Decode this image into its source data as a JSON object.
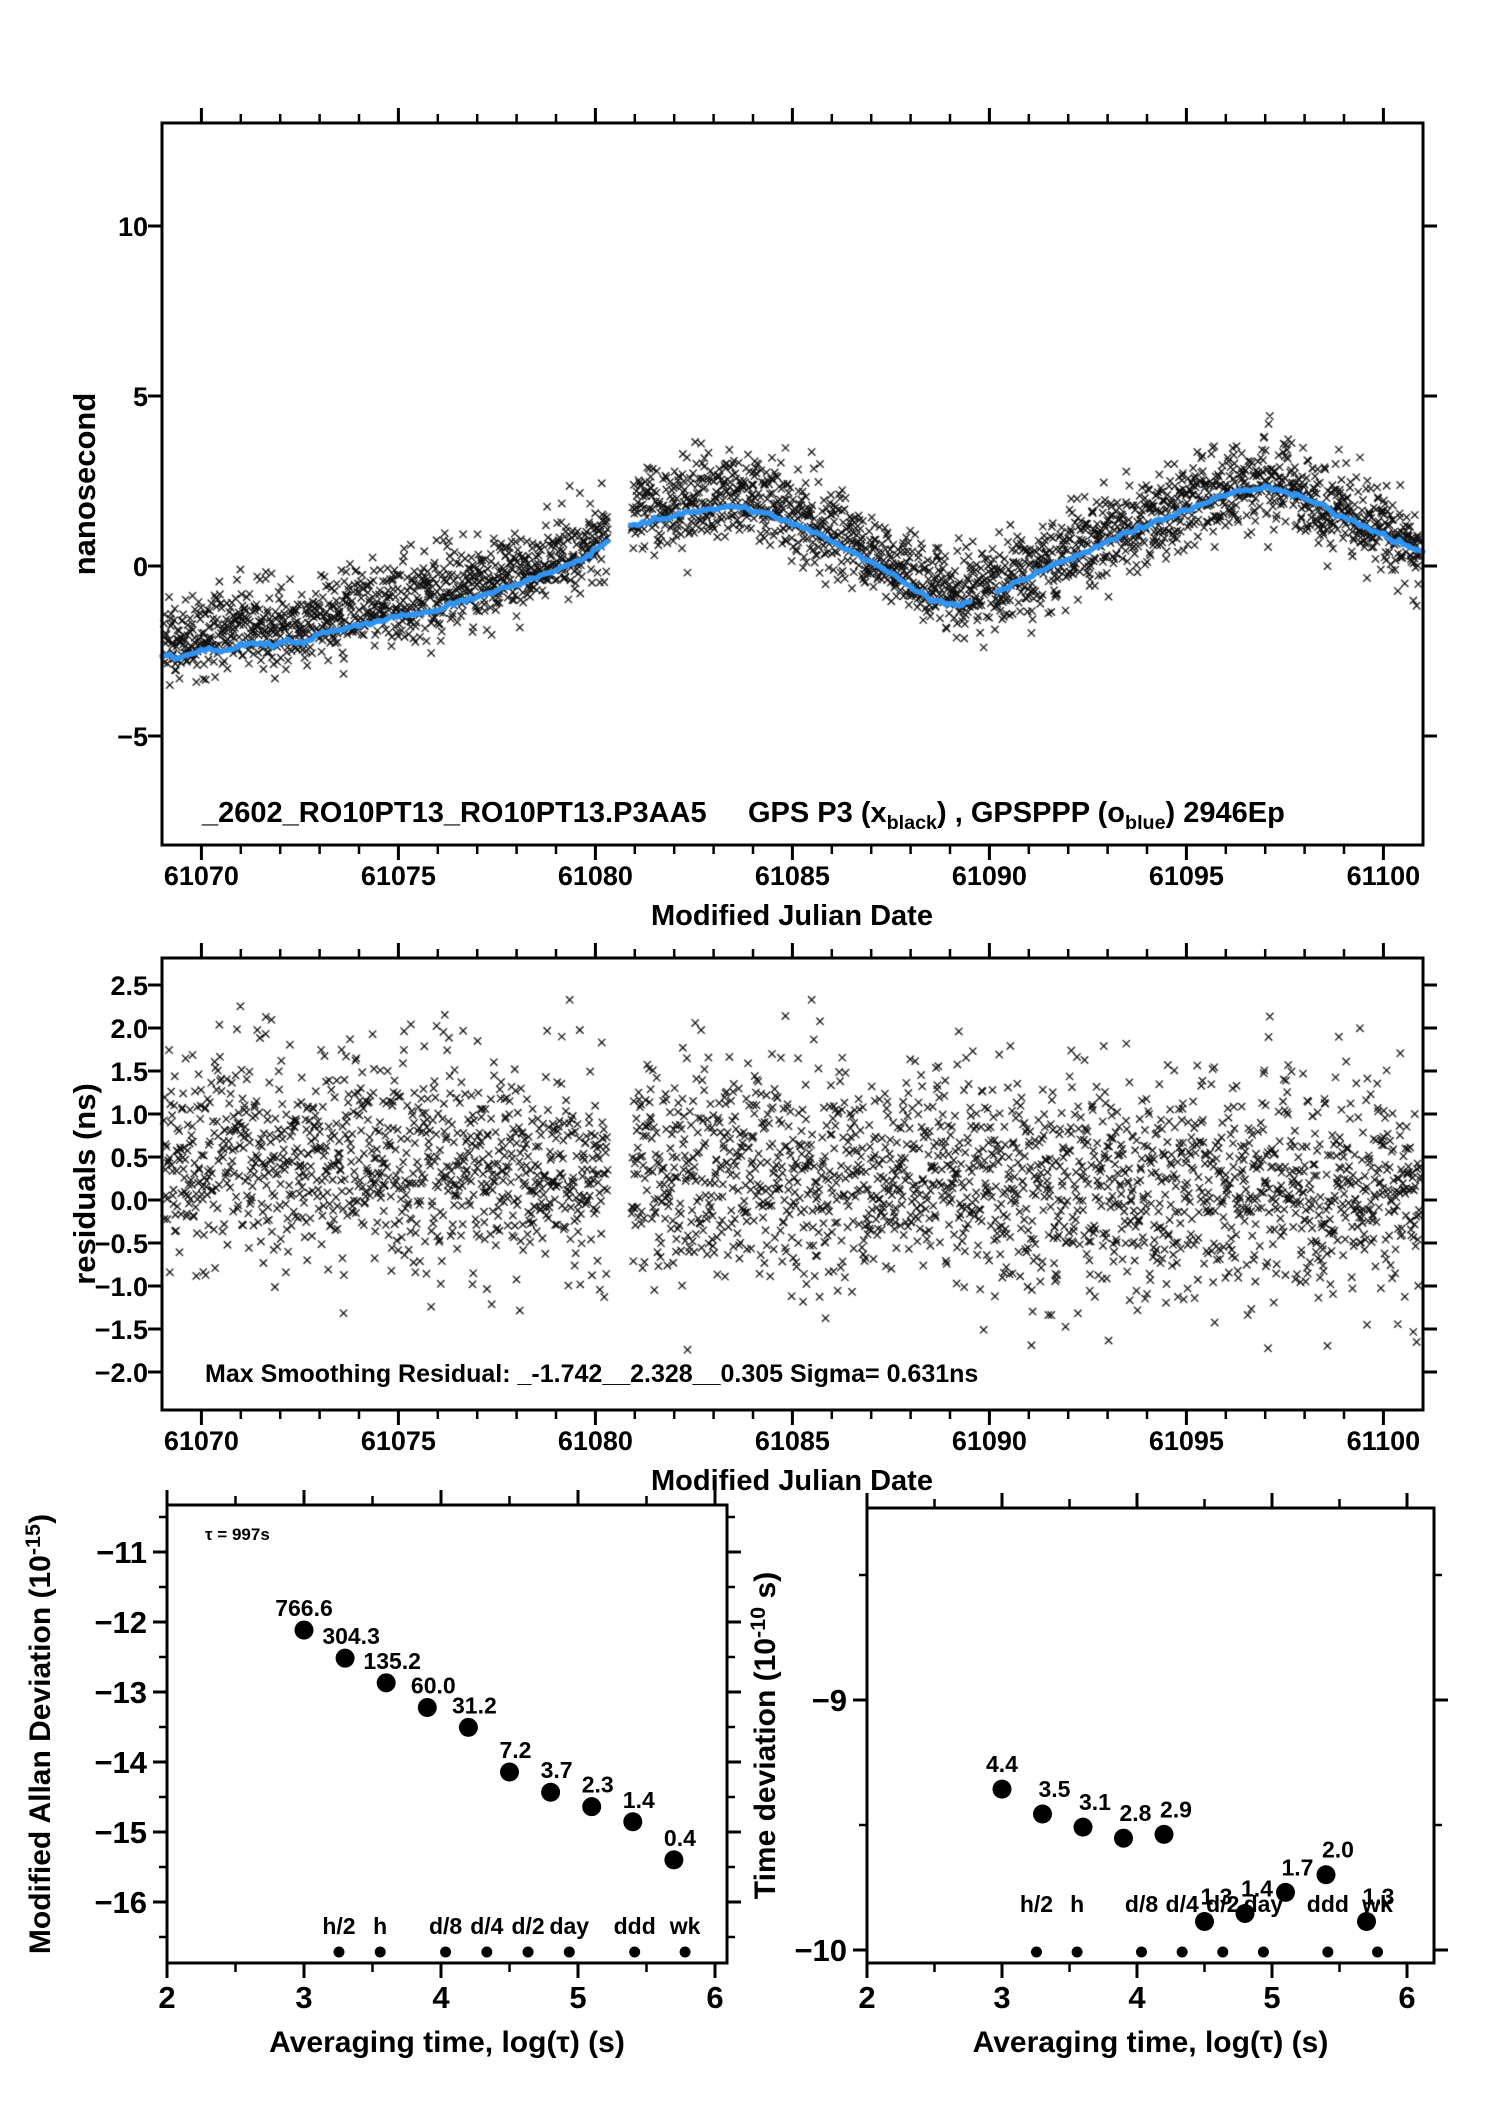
{
  "colors": {
    "black": "#000000",
    "blue": "#2f93f2",
    "red": "#ee0000",
    "background": "#ffffff"
  },
  "chart_data": [
    {
      "id": "gps_comparison",
      "type": "scatter+line",
      "title_left": "_2602_RO10PT13_RO10PT13.P3AA5",
      "title_right_parts": [
        {
          "t": "GPS P3 (x"
        },
        {
          "t": "black",
          "sub": true
        },
        {
          "t": ") ,  GPSPPP (o"
        },
        {
          "t": "blue",
          "sub": true
        },
        {
          "t": ")  2946Ep"
        }
      ],
      "xlabel": "Modified Julian Date",
      "ylabel_parts": [
        {
          "t": "nanosecond"
        }
      ],
      "xlim": [
        61069,
        61101
      ],
      "ylim": [
        -8.2,
        13.1
      ],
      "xticks": [
        61070,
        61075,
        61080,
        61085,
        61090,
        61095,
        61100
      ],
      "xtick_labels": [
        "61070",
        "61075",
        "61080",
        "61085",
        "61090",
        "61095",
        "61100"
      ],
      "xminor_step": 1,
      "yticks": [
        10,
        5,
        0,
        -5
      ],
      "ytick_labels": [
        "10",
        "5",
        "0",
        "−5"
      ],
      "grid": false,
      "epochs": 2946,
      "data_gap": [
        61080.32,
        61080.92
      ],
      "scatter_marker": "x",
      "scatter_color": "#000000",
      "scatter_sigma": 0.62,
      "scatter_mean_offset": [
        0.5,
        0.1
      ],
      "residual_clip": [
        -1.742,
        2.328
      ],
      "line_color": "#2f93f2",
      "trend_segments": [
        [
          [
            61069.0,
            -2.6
          ],
          [
            61069.4,
            -2.72
          ],
          [
            61069.8,
            -2.55
          ],
          [
            61070.2,
            -2.45
          ],
          [
            61070.6,
            -2.52
          ],
          [
            61071.0,
            -2.35
          ],
          [
            61071.4,
            -2.28
          ],
          [
            61071.8,
            -2.32
          ],
          [
            61072.2,
            -2.18
          ],
          [
            61072.6,
            -2.28
          ],
          [
            61073.0,
            -2.02
          ],
          [
            61073.4,
            -1.92
          ],
          [
            61073.8,
            -1.8
          ],
          [
            61074.2,
            -1.72
          ],
          [
            61074.6,
            -1.6
          ],
          [
            61075.0,
            -1.48
          ],
          [
            61075.4,
            -1.4
          ],
          [
            61075.8,
            -1.33
          ],
          [
            61076.2,
            -1.18
          ],
          [
            61076.6,
            -1.05
          ],
          [
            61077.0,
            -0.92
          ],
          [
            61077.4,
            -0.8
          ],
          [
            61077.8,
            -0.62
          ],
          [
            61078.2,
            -0.48
          ],
          [
            61078.6,
            -0.3
          ],
          [
            61079.0,
            -0.12
          ],
          [
            61079.4,
            0.05
          ],
          [
            61079.8,
            0.28
          ],
          [
            61080.1,
            0.55
          ],
          [
            61080.3,
            0.72
          ]
        ],
        [
          [
            61080.9,
            1.22
          ],
          [
            61081.3,
            1.32
          ],
          [
            61081.7,
            1.4
          ],
          [
            61082.1,
            1.5
          ],
          [
            61082.5,
            1.58
          ],
          [
            61082.9,
            1.68
          ],
          [
            61083.3,
            1.76
          ],
          [
            61083.7,
            1.74
          ],
          [
            61084.1,
            1.62
          ],
          [
            61084.5,
            1.48
          ],
          [
            61084.9,
            1.3
          ],
          [
            61085.3,
            1.12
          ],
          [
            61085.7,
            0.92
          ],
          [
            61086.1,
            0.68
          ],
          [
            61086.5,
            0.42
          ],
          [
            61086.9,
            0.18
          ],
          [
            61087.3,
            -0.08
          ],
          [
            61087.7,
            -0.38
          ],
          [
            61088.1,
            -0.68
          ],
          [
            61088.5,
            -0.95
          ],
          [
            61088.9,
            -1.1
          ],
          [
            61089.3,
            -1.15
          ],
          [
            61089.5,
            -1.05
          ]
        ],
        [
          [
            61090.2,
            -0.72
          ],
          [
            61090.6,
            -0.55
          ],
          [
            61091.0,
            -0.32
          ],
          [
            61091.4,
            -0.1
          ],
          [
            61091.8,
            0.1
          ],
          [
            61092.2,
            0.3
          ],
          [
            61092.6,
            0.5
          ],
          [
            61093.0,
            0.72
          ],
          [
            61093.4,
            0.92
          ],
          [
            61093.8,
            1.12
          ],
          [
            61094.2,
            1.3
          ],
          [
            61094.6,
            1.45
          ],
          [
            61095.0,
            1.65
          ],
          [
            61095.4,
            1.85
          ],
          [
            61095.8,
            2.02
          ],
          [
            61096.2,
            2.18
          ],
          [
            61096.6,
            2.26
          ],
          [
            61097.0,
            2.3
          ],
          [
            61097.4,
            2.22
          ],
          [
            61097.8,
            2.08
          ],
          [
            61098.2,
            1.9
          ],
          [
            61098.6,
            1.68
          ],
          [
            61099.0,
            1.45
          ],
          [
            61099.4,
            1.2
          ],
          [
            61099.8,
            0.98
          ],
          [
            61100.2,
            0.8
          ],
          [
            61100.6,
            0.58
          ],
          [
            61101.0,
            0.42
          ]
        ]
      ]
    },
    {
      "id": "residuals",
      "type": "scatter",
      "annotation": "Max Smoothing Residual: _-1.742__2.328__0.305  Sigma= 0.631ns",
      "max_residual_min": -1.742,
      "max_residual_max": 2.328,
      "residual_mean": 0.305,
      "sigma_ns": 0.631,
      "xlabel": "Modified Julian Date",
      "ylabel_parts": [
        {
          "t": "residuals (ns)"
        }
      ],
      "xlim": [
        61069,
        61101
      ],
      "ylim": [
        -2.44,
        2.81
      ],
      "xticks": [
        61070,
        61075,
        61080,
        61085,
        61090,
        61095,
        61100
      ],
      "xtick_labels": [
        "61070",
        "61075",
        "61080",
        "61085",
        "61090",
        "61095",
        "61100"
      ],
      "xminor_step": 1,
      "yticks": [
        2.5,
        2.0,
        1.5,
        1.0,
        0.5,
        0.0,
        -0.5,
        -1.0,
        -1.5,
        -2.0
      ],
      "ytick_labels": [
        "2.5",
        "2.0",
        "1.5",
        "1.0",
        "0.5",
        "0.0",
        "−0.5",
        "−1.0",
        "−1.5",
        "−2.0"
      ],
      "grid": false
    },
    {
      "id": "mdev",
      "type": "scatter",
      "annotation": "τ = 997s",
      "xlabel": "Averaging time, log(τ) (s)",
      "ylabel_parts": [
        {
          "t": "Modified Allan Deviation (10"
        },
        {
          "t": "-15",
          "sup": true
        },
        {
          "t": ")"
        }
      ],
      "xlim": [
        2.0,
        6.09
      ],
      "ylim": [
        -16.87,
        -10.33
      ],
      "xticks": [
        2,
        3,
        4,
        5,
        6
      ],
      "xtick_labels": [
        "2",
        "3",
        "4",
        "5",
        "6"
      ],
      "yticks": [
        -11,
        -12,
        -13,
        -14,
        -15,
        -16
      ],
      "ytick_labels": [
        "−11",
        "−12",
        "−13",
        "−14",
        "−15",
        "−16"
      ],
      "unit_scale": "1e-15",
      "log_tau": [
        3.0,
        3.3,
        3.6,
        3.9,
        4.2,
        4.5,
        4.8,
        5.1,
        5.4,
        5.7
      ],
      "values": [
        766.6,
        304.3,
        135.2,
        60.0,
        31.2,
        7.2,
        3.7,
        2.3,
        1.4,
        0.4
      ],
      "value_labels": [
        "766.6",
        "304.3",
        "135.2",
        "60.0",
        "31.2",
        "7.2",
        "3.7",
        "2.3",
        "1.4",
        "0.4"
      ],
      "time_unit_ticks": [
        {
          "label": "h/2",
          "logtau": 3.2553
        },
        {
          "label": "h",
          "logtau": 3.5563
        },
        {
          "label": "d/8",
          "logtau": 4.0334
        },
        {
          "label": "d/4",
          "logtau": 4.3345
        },
        {
          "label": "d/2",
          "logtau": 4.6355
        },
        {
          "label": "day",
          "logtau": 4.9365
        },
        {
          "label": "ddd",
          "logtau": 5.4137
        },
        {
          "label": "wk",
          "logtau": 5.7817
        }
      ]
    },
    {
      "id": "tdev",
      "type": "scatter",
      "xlabel": "Averaging time, log(τ) (s)",
      "ylabel_parts": [
        {
          "t": "Time deviation (10"
        },
        {
          "t": "-10",
          "sup": true
        },
        {
          "t": " s)"
        }
      ],
      "xlim": [
        2.0,
        6.2
      ],
      "ylim": [
        -10.05,
        -8.23
      ],
      "xticks": [
        2,
        3,
        4,
        5,
        6
      ],
      "xtick_labels": [
        "2",
        "3",
        "4",
        "5",
        "6"
      ],
      "yticks": [
        -9,
        -10
      ],
      "ytick_labels": [
        "−9",
        "−10"
      ],
      "unit_scale": "1e-10",
      "log_tau": [
        3.0,
        3.3,
        3.6,
        3.9,
        4.2,
        4.5,
        4.8,
        5.1,
        5.4,
        5.7
      ],
      "values": [
        4.4,
        3.5,
        3.1,
        2.8,
        2.9,
        1.3,
        1.4,
        1.7,
        2.0,
        1.3
      ],
      "value_labels": [
        "4.4",
        "3.5",
        "3.1",
        "2.8",
        "2.9",
        "1.3",
        "1.4",
        "1.7",
        "2.0",
        "1.3"
      ],
      "time_unit_ticks": [
        {
          "label": "h/2",
          "logtau": 3.2553
        },
        {
          "label": "h",
          "logtau": 3.5563
        },
        {
          "label": "d/8",
          "logtau": 4.0334
        },
        {
          "label": "d/4",
          "logtau": 4.3345
        },
        {
          "label": "d/2",
          "logtau": 4.6355
        },
        {
          "label": "day",
          "logtau": 4.9365
        },
        {
          "label": "ddd",
          "logtau": 5.4137
        },
        {
          "label": "wk",
          "logtau": 5.7817
        }
      ]
    }
  ]
}
